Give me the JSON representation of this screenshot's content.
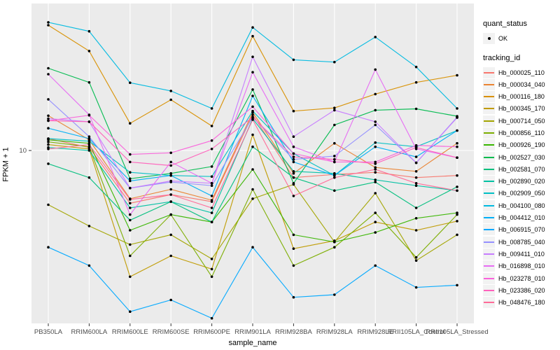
{
  "chart_data": {
    "type": "line",
    "title": "",
    "xlabel": "sample_name",
    "ylabel": "FPKM + 1",
    "y_scale": "log10",
    "y_tick_labels": [
      "10"
    ],
    "y_tick_values": [
      10
    ],
    "panel_bg": "#EBEBEB",
    "grid_color": "#FFFFFF",
    "point_color": "#000000",
    "tick_label_color": "#4D4D4D",
    "legend_position": "right",
    "categories": [
      "PB350LA",
      "RRIM600LA",
      "RRIM600LE",
      "RRIM600SE",
      "RRIM600PE",
      "RRIM901LA",
      "RRIM928BA",
      "RRIM928LA",
      "RRIM928LE",
      "RRII105LA_Control",
      "RRII105LA_Stressed"
    ],
    "series": [
      {
        "name": "Hb_000025_110",
        "color": "#F8766D",
        "values": [
          11.7,
          10.4,
          5.0,
          5.6,
          5.1,
          16.0,
          7.0,
          7.3,
          7.5,
          7.0,
          7.2
        ]
      },
      {
        "name": "Hb_000034_040",
        "color": "#EA8331",
        "values": [
          15.8,
          11.5,
          5.3,
          6.0,
          5.2,
          16.5,
          7.4,
          11.0,
          8.0,
          7.6,
          11.0
        ]
      },
      {
        "name": "Hb_000116_180",
        "color": "#D89000",
        "values": [
          52,
          37,
          14.3,
          19.5,
          13.8,
          45,
          16.8,
          17.5,
          21,
          24.5,
          26.9
        ]
      },
      {
        "name": "Hb_000345_170",
        "color": "#C09B00",
        "values": [
          10.8,
          10.2,
          1.9,
          2.5,
          2.1,
          12.3,
          2.75,
          3.05,
          3.9,
          3.5,
          3.95
        ]
      },
      {
        "name": "Hb_000714_050",
        "color": "#A3A500",
        "values": [
          4.9,
          3.7,
          2.9,
          3.3,
          2.4,
          5.3,
          6.4,
          3.0,
          5.7,
          2.35,
          3.3
        ]
      },
      {
        "name": "Hb_000856_110",
        "color": "#7CAE00",
        "values": [
          11.2,
          10.5,
          2.5,
          4.3,
          1.9,
          6.0,
          2.2,
          2.8,
          4.4,
          2.45,
          4.3
        ]
      },
      {
        "name": "Hb_000926_190",
        "color": "#39B600",
        "values": [
          11.5,
          11.0,
          3.5,
          4.3,
          3.9,
          7.8,
          3.3,
          3.0,
          3.4,
          4.1,
          4.4
        ]
      },
      {
        "name": "Hb_002527_030",
        "color": "#00BB4E",
        "values": [
          29.5,
          24.5,
          6.9,
          7.4,
          8.1,
          22.3,
          6.5,
          14.0,
          17.0,
          17.3,
          15.7
        ]
      },
      {
        "name": "Hb_002581_070",
        "color": "#00BF7D",
        "values": [
          8.4,
          7.0,
          4.0,
          5.1,
          3.9,
          10.5,
          7.0,
          5.9,
          6.6,
          4.7,
          6.2
        ]
      },
      {
        "name": "Hb_002890_020",
        "color": "#00C1A3",
        "values": [
          10.4,
          10.0,
          4.7,
          5.1,
          4.4,
          15.2,
          7.6,
          7.4,
          6.8,
          6.3,
          5.9
        ]
      },
      {
        "name": "Hb_002909_050",
        "color": "#00BFC4",
        "values": [
          11.7,
          11.3,
          7.5,
          7.2,
          7.1,
          16.8,
          9.6,
          7.2,
          11.1,
          10.5,
          13.0
        ]
      },
      {
        "name": "Hb_004100_080",
        "color": "#00BAE0",
        "values": [
          54,
          48,
          24.4,
          21.9,
          17.4,
          50.5,
          33,
          32,
          44.5,
          30,
          17.4
        ]
      },
      {
        "name": "Hb_004412_010",
        "color": "#00B0F6",
        "values": [
          13.4,
          11.7,
          6.7,
          7.2,
          5.5,
          20.5,
          8.6,
          7.2,
          10.5,
          9.2,
          13.0
        ]
      },
      {
        "name": "Hb_006915_070",
        "color": "#00A9FF",
        "values": [
          2.8,
          2.2,
          1.2,
          1.4,
          1.1,
          2.8,
          1.45,
          1.5,
          2.2,
          1.65,
          1.7
        ]
      },
      {
        "name": "Hb_008785_040",
        "color": "#9590FF",
        "values": [
          19.6,
          12.0,
          6.1,
          6.6,
          6.3,
          15.5,
          8.9,
          9.3,
          14.0,
          8.5,
          15.5
        ]
      },
      {
        "name": "Hb_009411_010",
        "color": "#C77CFF",
        "values": [
          15.2,
          14.6,
          6.1,
          6.7,
          6.5,
          34.3,
          12.0,
          17.0,
          14.6,
          8.5,
          15.4
        ]
      },
      {
        "name": "Hb_016898_010",
        "color": "#E76BF3",
        "values": [
          27.3,
          16.0,
          4.3,
          8.6,
          6.5,
          28.0,
          10.5,
          8.6,
          29.0,
          10.2,
          9.1
        ]
      },
      {
        "name": "Hb_023278_010",
        "color": "#FA62DB",
        "values": [
          14.8,
          15.9,
          9.5,
          9.7,
          11.4,
          17.8,
          9.6,
          8.6,
          8.6,
          10.7,
          10.5
        ]
      },
      {
        "name": "Hb_023386_020",
        "color": "#FF62BC",
        "values": [
          14.8,
          14.6,
          8.6,
          8.2,
          10.2,
          15.5,
          9.2,
          8.9,
          8.4,
          10.4,
          9.1
        ]
      },
      {
        "name": "Hb_048476_180",
        "color": "#FF6A98",
        "values": [
          10.2,
          10.8,
          5.25,
          5.6,
          4.7,
          15.0,
          5.5,
          7.0,
          7.8,
          6.5,
          5.9
        ]
      }
    ]
  },
  "legend": {
    "quant_status_title": "quant_status",
    "quant_status_items": [
      {
        "label": "OK",
        "marker": "point"
      }
    ],
    "tracking_id_title": "tracking_id"
  }
}
